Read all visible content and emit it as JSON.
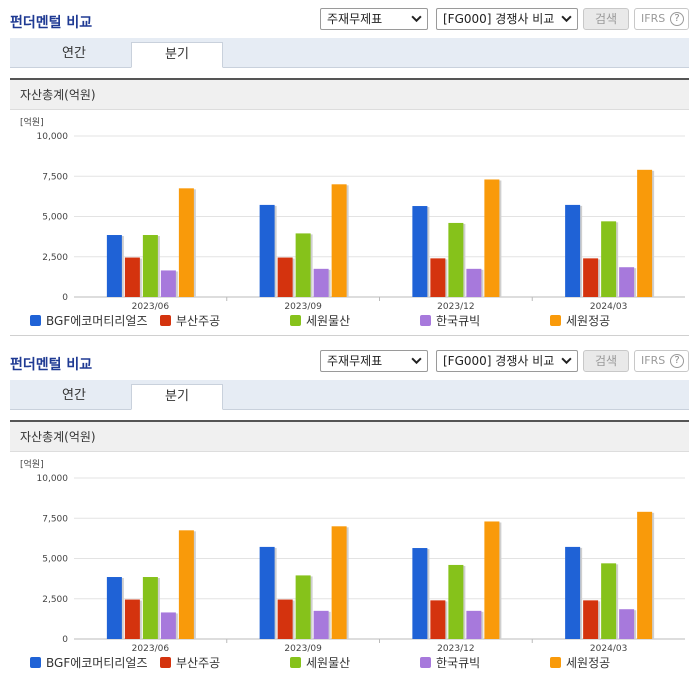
{
  "panels": [
    {
      "title": "펀더멘털 비교",
      "select_statement": "주재무제표",
      "select_compare": "[FG000] 경쟁사 비교",
      "search_label": "검색",
      "ifrs_label": "IFRS",
      "help_label": "?",
      "tabs": [
        {
          "label": "연간",
          "active": false
        },
        {
          "label": "분기",
          "active": true
        }
      ],
      "panel_header": "자산총계(억원)",
      "chart_data": {
        "type": "bar",
        "unit_label": "[억원]",
        "categories": [
          "2023/06",
          "2023/09",
          "2023/12",
          "2024/03"
        ],
        "ylim": [
          0,
          10000
        ],
        "yticks": [
          0,
          2500,
          5000,
          7500,
          10000
        ],
        "ytick_labels": [
          "0",
          "2,500",
          "5,000",
          "7,500",
          "10,000"
        ],
        "grid": true,
        "legend_position": "bottom",
        "series": [
          {
            "name": "BGF에코머티리얼즈",
            "color": "#1f62d6",
            "values": [
              3850,
              5720,
              5650,
              5720
            ]
          },
          {
            "name": "부산주공",
            "color": "#d4330e",
            "values": [
              2450,
              2450,
              2400,
              2400
            ]
          },
          {
            "name": "세원물산",
            "color": "#86c21b",
            "values": [
              3850,
              3950,
              4600,
              4700
            ]
          },
          {
            "name": "한국큐빅",
            "color": "#a779dc",
            "values": [
              1650,
              1750,
              1750,
              1850
            ]
          },
          {
            "name": "세원정공",
            "color": "#f99a0a",
            "values": [
              6750,
              7000,
              7300,
              7900
            ]
          }
        ]
      }
    },
    {
      "title": "펀더멘털 비교",
      "select_statement": "주재무제표",
      "select_compare": "[FG000] 경쟁사 비교",
      "search_label": "검색",
      "ifrs_label": "IFRS",
      "help_label": "?",
      "tabs": [
        {
          "label": "연간",
          "active": false
        },
        {
          "label": "분기",
          "active": true
        }
      ],
      "panel_header": "자산총계(억원)",
      "chart_data": {
        "type": "bar",
        "unit_label": "[억원]",
        "categories": [
          "2023/06",
          "2023/09",
          "2023/12",
          "2024/03"
        ],
        "ylim": [
          0,
          10000
        ],
        "yticks": [
          0,
          2500,
          5000,
          7500,
          10000
        ],
        "ytick_labels": [
          "0",
          "2,500",
          "5,000",
          "7,500",
          "10,000"
        ],
        "grid": true,
        "legend_position": "bottom",
        "series": [
          {
            "name": "BGF에코머티리얼즈",
            "color": "#1f62d6",
            "values": [
              3850,
              5720,
              5650,
              5720
            ]
          },
          {
            "name": "부산주공",
            "color": "#d4330e",
            "values": [
              2450,
              2450,
              2400,
              2400
            ]
          },
          {
            "name": "세원물산",
            "color": "#86c21b",
            "values": [
              3850,
              3950,
              4600,
              4700
            ]
          },
          {
            "name": "한국큐빅",
            "color": "#a779dc",
            "values": [
              1650,
              1750,
              1750,
              1850
            ]
          },
          {
            "name": "세원정공",
            "color": "#f99a0a",
            "values": [
              6750,
              7000,
              7300,
              7900
            ]
          }
        ]
      }
    }
  ]
}
